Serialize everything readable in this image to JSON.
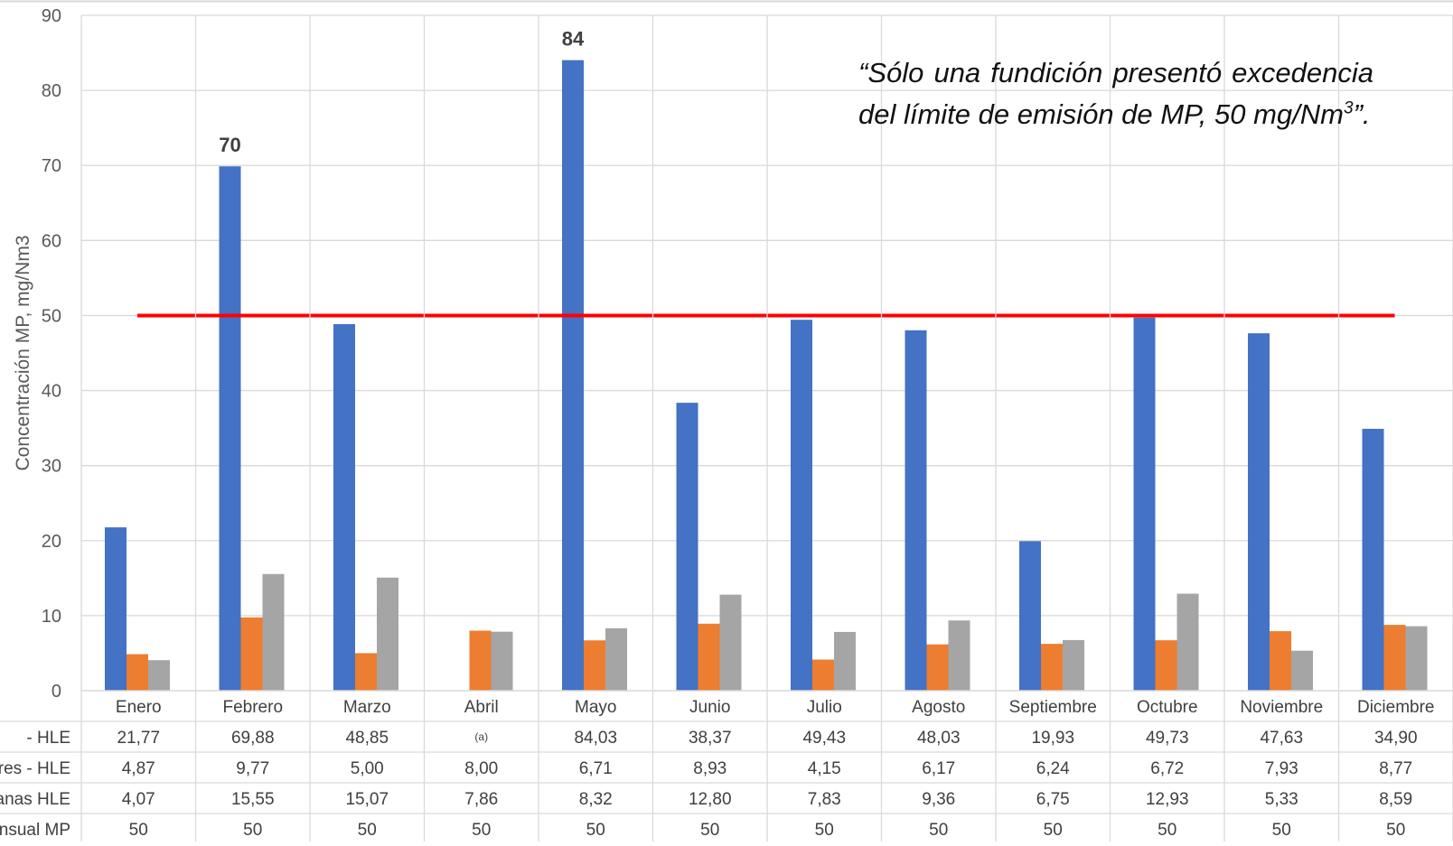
{
  "chart_data": {
    "type": "bar",
    "ylabel": "Concentración MP, mg/Nm3",
    "ylim": [
      0,
      90
    ],
    "yticks": [
      "0",
      "10",
      "20",
      "30",
      "40",
      "50",
      "60",
      "70",
      "80",
      "90"
    ],
    "categories": [
      "Enero",
      "Febrero",
      "Marzo",
      "Abril",
      "Mayo",
      "Junio",
      "Julio",
      "Agosto",
      "Septiembre",
      "Octubre",
      "Noviembre",
      "Diciembre"
    ],
    "series": [
      {
        "name": "- HLE",
        "color": "#4472C4",
        "values": [
          21.77,
          69.88,
          48.85,
          null,
          84.03,
          38.37,
          49.43,
          48.03,
          19.93,
          49.73,
          47.63,
          34.9
        ],
        "cells": [
          "21,77",
          "69,88",
          "48,85",
          "(a)",
          "84,03",
          "38,37",
          "49,43",
          "48,03",
          "19,93",
          "49,73",
          "47,63",
          "34,90"
        ]
      },
      {
        "name": "res - HLE",
        "color": "#ED7D31",
        "values": [
          4.87,
          9.77,
          5.0,
          8.0,
          6.71,
          8.93,
          4.15,
          6.17,
          6.24,
          6.72,
          7.93,
          8.77
        ],
        "cells": [
          "4,87",
          "9,77",
          "5,00",
          "8,00",
          "6,71",
          "8,93",
          "4,15",
          "6,17",
          "6,24",
          "6,72",
          "7,93",
          "8,77"
        ]
      },
      {
        "name": "tanas HLE",
        "color": "#A5A5A5",
        "values": [
          4.07,
          15.55,
          15.07,
          7.86,
          8.32,
          12.8,
          7.83,
          9.36,
          6.75,
          12.93,
          5.33,
          8.59
        ],
        "cells": [
          "4,07",
          "15,55",
          "15,07",
          "7,86",
          "8,32",
          "12,80",
          "7,83",
          "9,36",
          "6,75",
          "12,93",
          "5,33",
          "8,59"
        ]
      }
    ],
    "limit_line": {
      "name": "nsual MP",
      "color": "#FF0000",
      "value": 50,
      "cells": [
        "50",
        "50",
        "50",
        "50",
        "50",
        "50",
        "50",
        "50",
        "50",
        "50",
        "50",
        "50"
      ]
    },
    "data_labels": [
      {
        "category": "Febrero",
        "text": "70"
      },
      {
        "category": "Mayo",
        "text": "84"
      }
    ],
    "grid": true
  },
  "annotation": {
    "text": "“Sólo una fundición presentó excedencia del límite de emisión de MP, 50 mg/Nm",
    "superscript": "3",
    "closing": "”."
  }
}
